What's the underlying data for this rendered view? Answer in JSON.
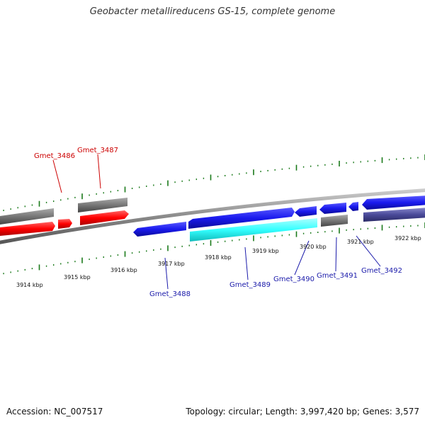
{
  "title": "Geobacter metallireducens GS-15, complete genome",
  "footer": {
    "accession": "Accession: NC_007517",
    "summary": "Topology: circular; Length: 3,997,420 bp; Genes: 3,577"
  },
  "colors": {
    "backbone": "#8a8a8a",
    "tick": "#1a7a1a",
    "red_gene": "#ff0000",
    "blue_gene": "#1a1aee",
    "cyan_gene": "#33ffff",
    "grey_gene": "#777777",
    "purple_gene": "#4a4a9a",
    "red_label": "#cc0000",
    "blue_label": "#1a1aaa"
  },
  "scale_labels": [
    "3914 kbp",
    "3915 kbp",
    "3916 kbp",
    "3917 kbp",
    "3918 kbp",
    "3919 kbp",
    "3920 kbp",
    "3921 kbp",
    "3922 kbp"
  ],
  "gene_labels_top": [
    "Gmet_3486",
    "Gmet_3487"
  ],
  "gene_labels_bottom": [
    "Gmet_3488",
    "Gmet_3489",
    "Gmet_3490",
    "Gmet_3491",
    "Gmet_3492"
  ]
}
